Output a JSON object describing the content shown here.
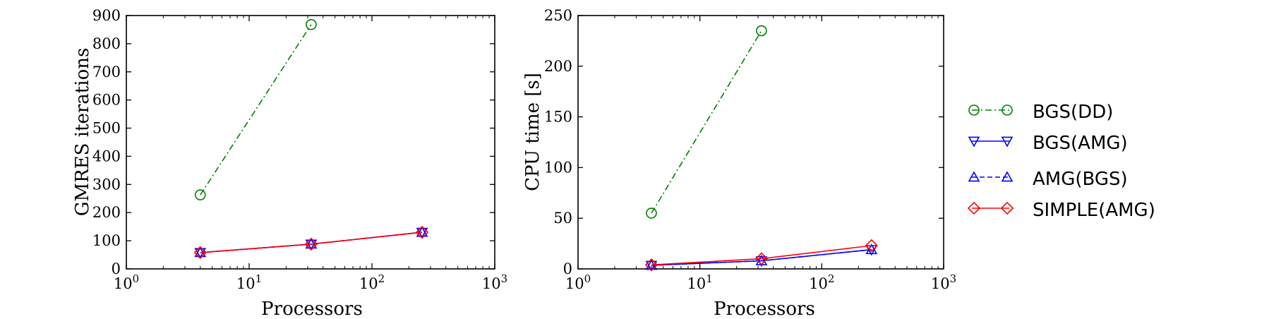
{
  "legend": {
    "entries": [
      {
        "label": "BGS(DD)",
        "color": "#008000",
        "marker": "circle",
        "dash": "dashdot"
      },
      {
        "label": "BGS(AMG)",
        "color": "#0000ff",
        "marker": "triangle-down",
        "dash": "solid"
      },
      {
        "label": "AMG(BGS)",
        "color": "#0000ff",
        "marker": "triangle-up",
        "dash": "dashed"
      },
      {
        "label": "SIMPLE(AMG)",
        "color": "#ff0000",
        "marker": "diamond",
        "dash": "solid"
      }
    ]
  },
  "chart_data": [
    {
      "type": "line",
      "title": "",
      "xlabel": "Processors",
      "ylabel": "GMRES iterations",
      "xscale": "log",
      "xlim": [
        1,
        1000
      ],
      "ylim": [
        0,
        900
      ],
      "xticks": [
        1,
        10,
        100,
        1000
      ],
      "yticks": [
        0,
        100,
        200,
        300,
        400,
        500,
        600,
        700,
        800,
        900
      ],
      "grid": false,
      "series": [
        {
          "name": "BGS(DD)",
          "x": [
            4,
            32
          ],
          "values": [
            263,
            868
          ]
        },
        {
          "name": "BGS(AMG)",
          "x": [
            4,
            32,
            256
          ],
          "values": [
            58,
            88,
            130
          ]
        },
        {
          "name": "AMG(BGS)",
          "x": [
            4,
            32,
            256
          ],
          "values": [
            58,
            88,
            130
          ]
        },
        {
          "name": "SIMPLE(AMG)",
          "x": [
            4,
            32,
            256
          ],
          "values": [
            58,
            88,
            130
          ]
        }
      ]
    },
    {
      "type": "line",
      "title": "",
      "xlabel": "Processors",
      "ylabel": "CPU time [s]",
      "xscale": "log",
      "xlim": [
        1,
        1000
      ],
      "ylim": [
        0,
        250
      ],
      "xticks": [
        1,
        10,
        100,
        1000
      ],
      "yticks": [
        0,
        50,
        100,
        150,
        200,
        250
      ],
      "grid": false,
      "series": [
        {
          "name": "BGS(DD)",
          "x": [
            4,
            32
          ],
          "values": [
            55,
            235
          ]
        },
        {
          "name": "BGS(AMG)",
          "x": [
            4,
            32,
            256
          ],
          "values": [
            3.5,
            8,
            19
          ]
        },
        {
          "name": "AMG(BGS)",
          "x": [
            4,
            32,
            256
          ],
          "values": [
            3.5,
            8,
            19
          ]
        },
        {
          "name": "SIMPLE(AMG)",
          "x": [
            4,
            32,
            256
          ],
          "values": [
            4,
            10,
            23
          ]
        }
      ]
    }
  ]
}
